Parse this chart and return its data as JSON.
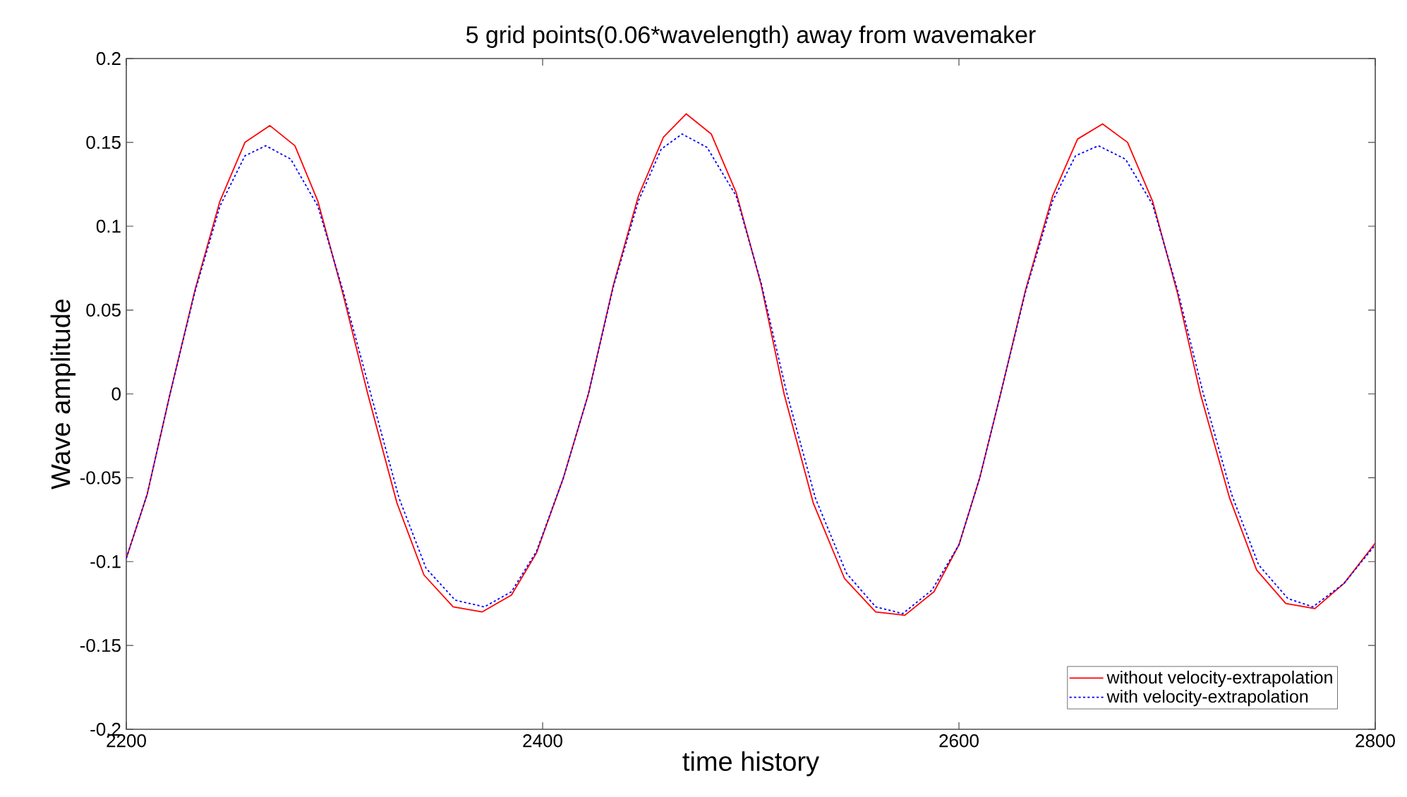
{
  "chart_data": {
    "type": "line",
    "title": "5 grid points(0.06*wavelength) away from wavemaker",
    "xlabel": "time history",
    "ylabel": "Wave amplitude",
    "xlim": [
      2200,
      2800
    ],
    "ylim": [
      -0.2,
      0.2
    ],
    "xticks": [
      2200,
      2400,
      2600,
      2800
    ],
    "yticks": [
      -0.2,
      -0.15,
      -0.1,
      -0.05,
      0,
      0.05,
      0.1,
      0.15,
      0.2
    ],
    "grid": false,
    "legend": "bottom right",
    "series": [
      {
        "name": "without velocity-extrapolation",
        "color": "#ff0000",
        "line_style": "solid",
        "x": [
          2200,
          2210,
          2221,
          2233,
          2245,
          2257,
          2269,
          2281,
          2292,
          2304,
          2316,
          2330,
          2343,
          2357,
          2371,
          2385,
          2397,
          2410,
          2422,
          2434,
          2446,
          2458,
          2469,
          2481,
          2493,
          2505,
          2516,
          2530,
          2545,
          2560,
          2574,
          2588,
          2600,
          2610,
          2620,
          2632,
          2645,
          2657,
          2669,
          2681,
          2693,
          2705,
          2716,
          2730,
          2743,
          2757,
          2771,
          2785,
          2800
        ],
        "values": [
          -0.098,
          -0.06,
          0,
          0.062,
          0.115,
          0.15,
          0.16,
          0.148,
          0.115,
          0.06,
          0,
          -0.065,
          -0.108,
          -0.127,
          -0.13,
          -0.12,
          -0.095,
          -0.05,
          0,
          0.065,
          0.118,
          0.153,
          0.167,
          0.155,
          0.12,
          0.065,
          0,
          -0.065,
          -0.11,
          -0.13,
          -0.132,
          -0.118,
          -0.09,
          -0.05,
          0,
          0.062,
          0.118,
          0.152,
          0.161,
          0.15,
          0.115,
          0.06,
          0,
          -0.062,
          -0.105,
          -0.125,
          -0.128,
          -0.113,
          -0.089
        ]
      },
      {
        "name": "with velocity-extrapolation",
        "color": "#0000ff",
        "line_style": "dotted",
        "x": [
          2200,
          2210,
          2221,
          2233,
          2245,
          2257,
          2267,
          2279,
          2292,
          2304,
          2317,
          2331,
          2344,
          2358,
          2372,
          2385,
          2397,
          2410,
          2422,
          2434,
          2446,
          2457,
          2467,
          2479,
          2493,
          2505,
          2517,
          2531,
          2546,
          2560,
          2573,
          2587,
          2600,
          2610,
          2620,
          2632,
          2645,
          2656,
          2667,
          2680,
          2693,
          2705,
          2717,
          2731,
          2744,
          2758,
          2770,
          2785,
          2800
        ],
        "values": [
          -0.098,
          -0.06,
          0,
          0.061,
          0.112,
          0.142,
          0.148,
          0.14,
          0.112,
          0.062,
          0.002,
          -0.062,
          -0.104,
          -0.123,
          -0.127,
          -0.118,
          -0.094,
          -0.05,
          0,
          0.064,
          0.115,
          0.146,
          0.155,
          0.147,
          0.118,
          0.066,
          0.002,
          -0.062,
          -0.107,
          -0.127,
          -0.131,
          -0.117,
          -0.09,
          -0.05,
          0,
          0.061,
          0.115,
          0.142,
          0.148,
          0.14,
          0.113,
          0.062,
          0.002,
          -0.06,
          -0.102,
          -0.122,
          -0.127,
          -0.113,
          -0.09
        ]
      }
    ]
  }
}
